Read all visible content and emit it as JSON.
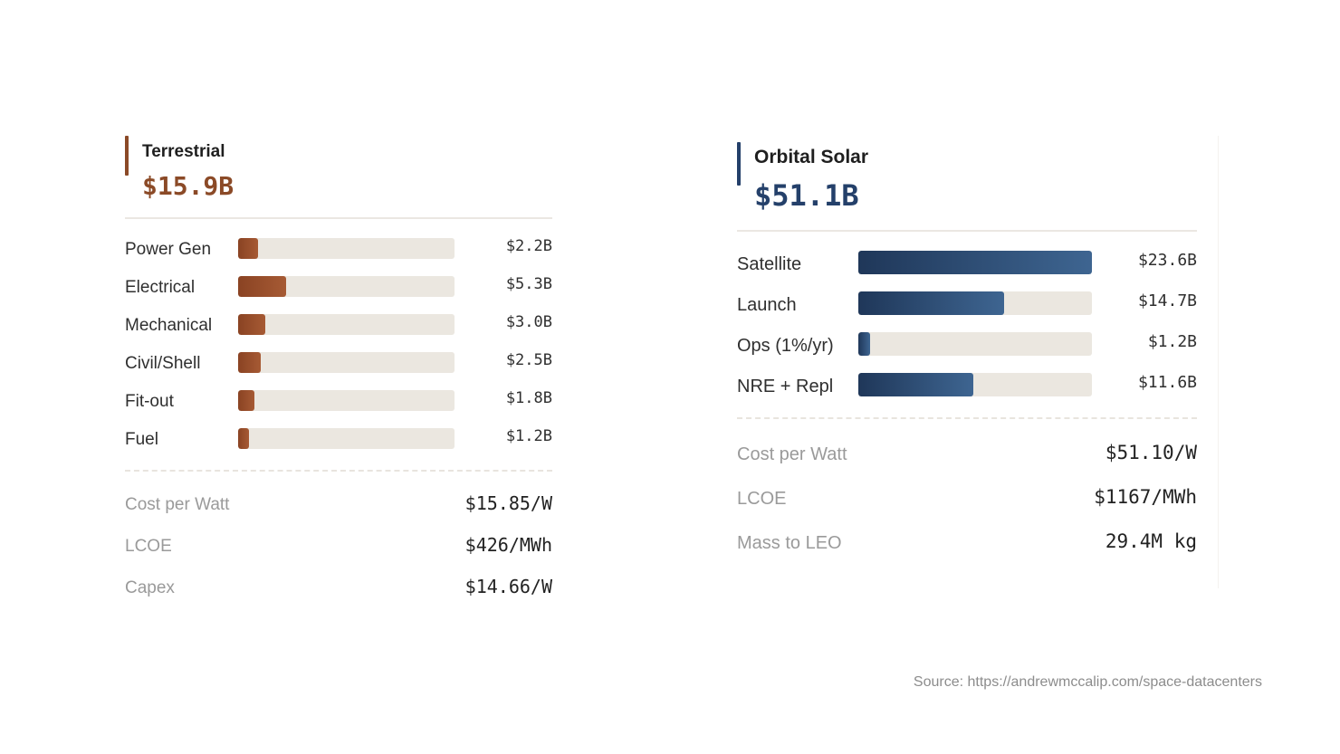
{
  "colors": {
    "terrestrial_accent": "#8b4a27",
    "orbital_accent": "#24406a",
    "track": "#ebe7e0"
  },
  "terrestrial": {
    "title": "Terrestrial",
    "total": "$15.9B",
    "items": [
      {
        "label": "Power Gen",
        "value": "$2.2B",
        "amount": 2.2
      },
      {
        "label": "Electrical",
        "value": "$5.3B",
        "amount": 5.3
      },
      {
        "label": "Mechanical",
        "value": "$3.0B",
        "amount": 3.0
      },
      {
        "label": "Civil/Shell",
        "value": "$2.5B",
        "amount": 2.5
      },
      {
        "label": "Fit-out",
        "value": "$1.8B",
        "amount": 1.8
      },
      {
        "label": "Fuel",
        "value": "$1.2B",
        "amount": 1.2
      }
    ],
    "metrics": [
      {
        "label": "Cost per Watt",
        "value": "$15.85/W"
      },
      {
        "label": "LCOE",
        "value": "$426/MWh"
      },
      {
        "label": "Capex",
        "value": "$14.66/W"
      }
    ]
  },
  "orbital": {
    "title": "Orbital Solar",
    "total": "$51.1B",
    "items": [
      {
        "label": "Satellite",
        "value": "$23.6B",
        "amount": 23.6
      },
      {
        "label": "Launch",
        "value": "$14.7B",
        "amount": 14.7
      },
      {
        "label": "Ops (1%/yr)",
        "value": "$1.2B",
        "amount": 1.2
      },
      {
        "label": "NRE + Repl",
        "value": "$11.6B",
        "amount": 11.6
      }
    ],
    "metrics": [
      {
        "label": "Cost per Watt",
        "value": "$51.10/W"
      },
      {
        "label": "LCOE",
        "value": "$1167/MWh"
      },
      {
        "label": "Mass to LEO",
        "value": "29.4M kg"
      }
    ]
  },
  "source": "Source: https://andrewmccalip.com/space-datacenters"
}
